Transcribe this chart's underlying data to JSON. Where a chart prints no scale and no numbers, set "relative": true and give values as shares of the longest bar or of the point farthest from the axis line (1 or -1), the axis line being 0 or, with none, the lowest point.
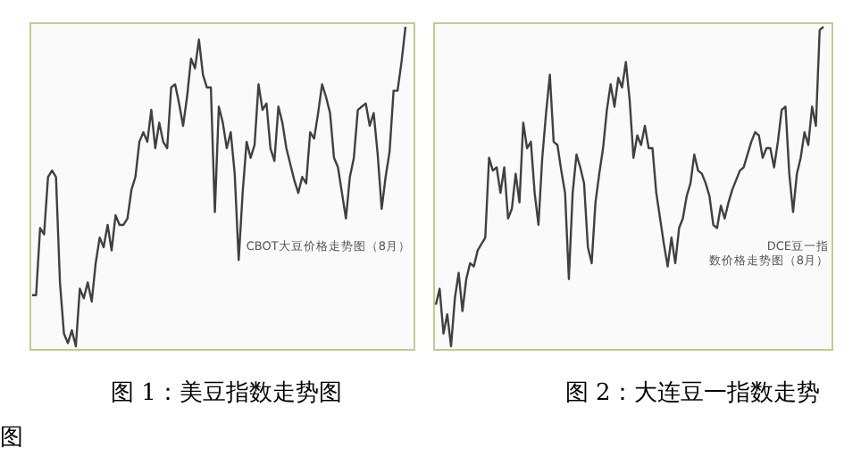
{
  "chart_data": [
    {
      "type": "line",
      "title": "图 1：美豆指数走势图",
      "relative": true,
      "categories": [
        null,
        null,
        null,
        null,
        null,
        null,
        null,
        null,
        null,
        null,
        null,
        null,
        null,
        null,
        null,
        null,
        null,
        null,
        null,
        null,
        null,
        null,
        null,
        null,
        null,
        null,
        null,
        null,
        null,
        null,
        null,
        null,
        null,
        null,
        null,
        null,
        null,
        null,
        null,
        null,
        null,
        null,
        null,
        null,
        null,
        null,
        null,
        null,
        null,
        null,
        null,
        null,
        null,
        null,
        null,
        null,
        null,
        null,
        null,
        null,
        null,
        null,
        null,
        null,
        null,
        null,
        null,
        null,
        null,
        null,
        null,
        null,
        null,
        null,
        null,
        null,
        null,
        null,
        null,
        null,
        null,
        null,
        null,
        null,
        null,
        null,
        null,
        null,
        null,
        null,
        null,
        null,
        null,
        null,
        null
      ],
      "series": [
        {
          "color": "#404040",
          "values": [
            0.16,
            0.16,
            0.37,
            0.35,
            0.53,
            0.55,
            0.53,
            0.2,
            0.04,
            0.01,
            0.05,
            0,
            0.18,
            0.15,
            0.2,
            0.14,
            0.26,
            0.34,
            0.31,
            0.38,
            0.3,
            0.41,
            0.38,
            0.38,
            0.4,
            0.49,
            0.53,
            0.64,
            0.67,
            0.64,
            0.74,
            0.62,
            0.7,
            0.64,
            0.62,
            0.81,
            0.82,
            0.76,
            0.69,
            0.78,
            0.9,
            0.87,
            0.96,
            0.85,
            0.81,
            0.81,
            0.42,
            0.75,
            0.7,
            0.62,
            0.67,
            0.54,
            0.27,
            0.48,
            0.64,
            0.59,
            0.63,
            0.82,
            0.74,
            0.76,
            0.62,
            0.58,
            0.75,
            0.7,
            0.62,
            0.57,
            0.52,
            0.48,
            0.53,
            0.51,
            0.67,
            0.65,
            0.73,
            0.82,
            0.78,
            0.73,
            0.59,
            0.56,
            0.48,
            0.4,
            0.53,
            0.59,
            0.74,
            0.75,
            0.76,
            0.69,
            0.73,
            0.6,
            0.43,
            0.53,
            0.61,
            0.8,
            0.8,
            0.89,
            1.0
          ]
        }
      ],
      "annotations": [
        "CBOT大豆价格走势图（8月）"
      ]
    },
    {
      "type": "line",
      "title": "图 2：大连豆一指数走势图",
      "relative": true,
      "categories": [
        null,
        null,
        null,
        null,
        null,
        null,
        null,
        null,
        null,
        null,
        null,
        null,
        null,
        null,
        null,
        null,
        null,
        null,
        null,
        null,
        null,
        null,
        null,
        null,
        null,
        null,
        null,
        null,
        null,
        null,
        null,
        null,
        null,
        null,
        null,
        null,
        null,
        null,
        null,
        null,
        null,
        null,
        null,
        null,
        null,
        null,
        null,
        null,
        null,
        null,
        null,
        null,
        null,
        null,
        null,
        null,
        null,
        null,
        null,
        null,
        null,
        null,
        null,
        null,
        null,
        null,
        null,
        null,
        null,
        null,
        null,
        null,
        null,
        null,
        null,
        null,
        null,
        null,
        null,
        null,
        null,
        null,
        null,
        null,
        null,
        null,
        null,
        null,
        null,
        null,
        null,
        null,
        null,
        null,
        null,
        null,
        null,
        null,
        null,
        null,
        null,
        null,
        null
      ],
      "series": [
        {
          "color": "#404040",
          "values": [
            0.13,
            0.18,
            0.04,
            0.1,
            0,
            0.15,
            0.23,
            0.11,
            0.21,
            0.26,
            0.25,
            0.3,
            0.32,
            0.34,
            0.59,
            0.55,
            0.56,
            0.48,
            0.56,
            0.4,
            0.43,
            0.54,
            0.45,
            0.7,
            0.62,
            0.64,
            0.48,
            0.38,
            0.59,
            0.73,
            0.85,
            0.64,
            0.63,
            0.55,
            0.48,
            0.21,
            0.48,
            0.6,
            0.56,
            0.51,
            0.31,
            0.26,
            0.45,
            0.54,
            0.62,
            0.74,
            0.82,
            0.75,
            0.84,
            0.81,
            0.89,
            0.77,
            0.59,
            0.66,
            0.63,
            0.69,
            0.62,
            0.62,
            0.48,
            0.4,
            0.32,
            0.25,
            0.34,
            0.26,
            0.37,
            0.4,
            0.47,
            0.51,
            0.6,
            0.55,
            0.54,
            0.51,
            0.47,
            0.38,
            0.37,
            0.44,
            0.4,
            0.45,
            0.49,
            0.52,
            0.55,
            0.56,
            0.6,
            0.64,
            0.67,
            0.66,
            0.59,
            0.62,
            0.62,
            0.56,
            0.64,
            0.74,
            0.75,
            0.54,
            0.42,
            0.54,
            0.59,
            0.67,
            0.63,
            0.75,
            0.69,
            0.99,
            1.0
          ]
        }
      ],
      "annotations": [
        "DCE豆一指数价格走势图（8月）"
      ]
    }
  ]
}
